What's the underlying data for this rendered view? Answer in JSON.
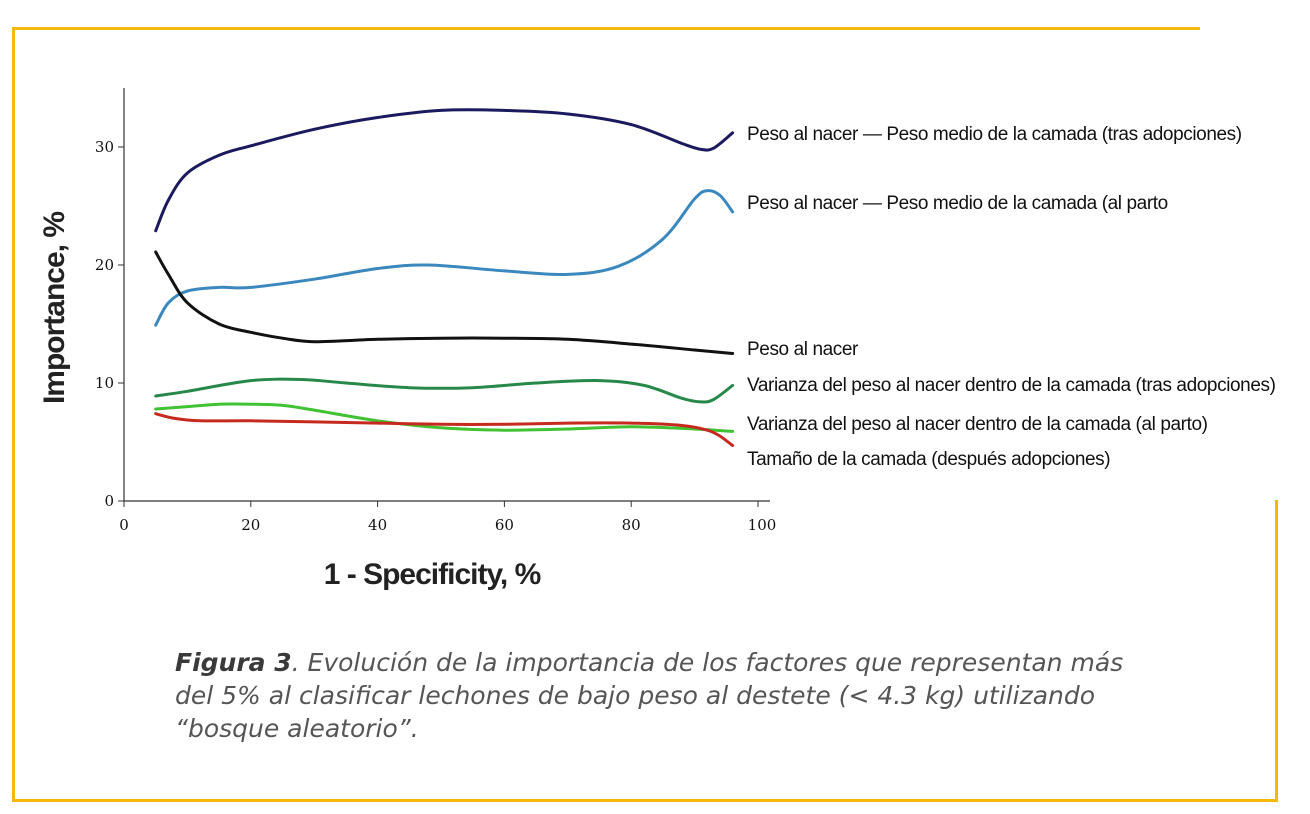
{
  "colors": {
    "frame": "#f5b80a"
  },
  "chart_data": {
    "type": "line",
    "xlabel": "1 - Specificity, %",
    "ylabel": "Importance, %",
    "xlim": [
      0,
      100
    ],
    "ylim": [
      0,
      35
    ],
    "xticks": [
      0,
      20,
      40,
      60,
      80,
      100
    ],
    "yticks": [
      0,
      10,
      20,
      30
    ],
    "grid": false,
    "legend_placement": "right (labels at line ends)",
    "series": [
      {
        "name": "Peso al nacer — Peso medio de la camada (tras adopciones)",
        "color": "#1b1a5e",
        "points": [
          [
            5,
            22.9
          ],
          [
            7,
            25.5
          ],
          [
            10,
            27.8
          ],
          [
            15,
            29.3
          ],
          [
            20,
            30.1
          ],
          [
            30,
            31.5
          ],
          [
            40,
            32.5
          ],
          [
            50,
            33.1
          ],
          [
            60,
            33.1
          ],
          [
            70,
            32.8
          ],
          [
            80,
            31.9
          ],
          [
            88,
            30.3
          ],
          [
            91,
            29.8
          ],
          [
            93,
            29.9
          ],
          [
            96,
            31.2
          ]
        ]
      },
      {
        "name": "Peso al nacer — Peso medio de la camada (al parto",
        "color": "#3a88be",
        "points": [
          [
            5,
            14.9
          ],
          [
            7,
            16.8
          ],
          [
            10,
            17.8
          ],
          [
            15,
            18.1
          ],
          [
            20,
            18.1
          ],
          [
            30,
            18.8
          ],
          [
            40,
            19.7
          ],
          [
            48,
            20.0
          ],
          [
            60,
            19.5
          ],
          [
            70,
            19.2
          ],
          [
            78,
            19.9
          ],
          [
            85,
            22.2
          ],
          [
            90,
            25.6
          ],
          [
            92,
            26.3
          ],
          [
            94,
            25.9
          ],
          [
            96,
            24.5
          ]
        ]
      },
      {
        "name": "Peso al nacer",
        "color": "#111111",
        "points": [
          [
            5,
            21.1
          ],
          [
            7,
            19.2
          ],
          [
            10,
            16.8
          ],
          [
            15,
            15.0
          ],
          [
            20,
            14.3
          ],
          [
            25,
            13.8
          ],
          [
            30,
            13.5
          ],
          [
            40,
            13.7
          ],
          [
            50,
            13.8
          ],
          [
            60,
            13.8
          ],
          [
            70,
            13.7
          ],
          [
            80,
            13.3
          ],
          [
            90,
            12.8
          ],
          [
            96,
            12.5
          ]
        ]
      },
      {
        "name": "Varianza del peso al nacer dentro de la camada (tras adopciones)",
        "color": "#27884a",
        "points": [
          [
            5,
            8.9
          ],
          [
            10,
            9.3
          ],
          [
            20,
            10.2
          ],
          [
            28,
            10.3
          ],
          [
            35,
            10.0
          ],
          [
            45,
            9.6
          ],
          [
            55,
            9.6
          ],
          [
            65,
            10.0
          ],
          [
            75,
            10.2
          ],
          [
            82,
            9.8
          ],
          [
            88,
            8.7
          ],
          [
            91,
            8.4
          ],
          [
            93,
            8.6
          ],
          [
            96,
            9.8
          ]
        ]
      },
      {
        "name": "Varianza del peso al nacer dentro de la camada (al parto)",
        "color": "#41c233",
        "points": [
          [
            5,
            7.8
          ],
          [
            10,
            8.0
          ],
          [
            15,
            8.2
          ],
          [
            20,
            8.2
          ],
          [
            25,
            8.1
          ],
          [
            30,
            7.7
          ],
          [
            40,
            6.8
          ],
          [
            50,
            6.2
          ],
          [
            60,
            6.0
          ],
          [
            70,
            6.1
          ],
          [
            80,
            6.3
          ],
          [
            90,
            6.1
          ],
          [
            96,
            5.9
          ]
        ]
      },
      {
        "name": "Tamaño de la camada (después adopciones)",
        "color": "#c62a1e",
        "points": [
          [
            5,
            7.4
          ],
          [
            8,
            7.0
          ],
          [
            12,
            6.8
          ],
          [
            20,
            6.8
          ],
          [
            30,
            6.7
          ],
          [
            40,
            6.6
          ],
          [
            50,
            6.5
          ],
          [
            60,
            6.5
          ],
          [
            70,
            6.6
          ],
          [
            80,
            6.6
          ],
          [
            88,
            6.4
          ],
          [
            92,
            6.0
          ],
          [
            94,
            5.5
          ],
          [
            96,
            4.7
          ]
        ]
      }
    ]
  },
  "caption": {
    "bold": "Figura 3",
    "line1": ". Evolución de la importancia de los factores que representan más",
    "line2": "del 5% al clasificar lechones de bajo peso al destete (< 4.3 kg) utilizando",
    "line3": "“bosque aleatorio”."
  }
}
